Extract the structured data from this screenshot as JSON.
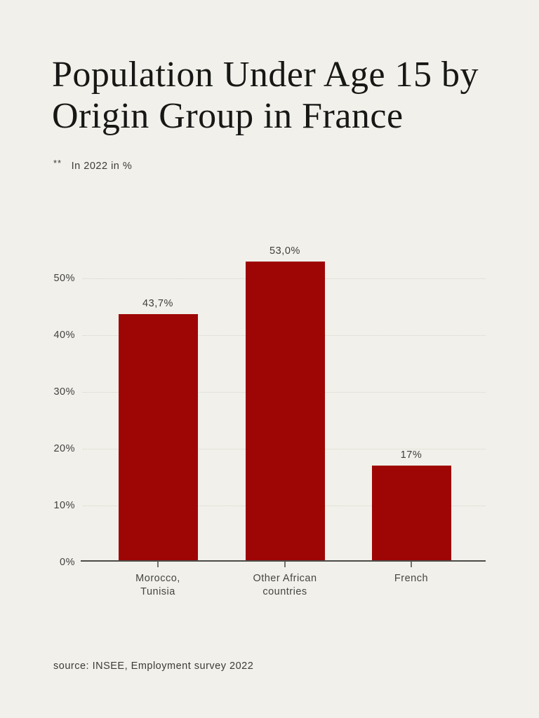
{
  "page": {
    "background_color": "#f1f0ea"
  },
  "header": {
    "title_line1": "Population Under Age 15 by",
    "title_line2": "Origin Group in France",
    "note_marker": "**",
    "note_text": "In 2022 in %"
  },
  "footer": {
    "source": "source: INSEE, Employment survey 2022"
  },
  "chart_data": {
    "type": "bar",
    "title": "Population Under Age 15 by Origin Group in France",
    "subtitle": "In 2022 in %",
    "categories": [
      "Morocco,\nTunisia",
      "Other African\ncountries",
      "French"
    ],
    "values": [
      43.7,
      53.0,
      17.0
    ],
    "value_labels": [
      "43,7%",
      "53,0%",
      "17%"
    ],
    "y_ticks": [
      0,
      10,
      20,
      30,
      40,
      50
    ],
    "y_tick_labels": [
      "0%",
      "10%",
      "20%",
      "30%",
      "40%",
      "50%"
    ],
    "ylim": [
      0,
      57
    ],
    "xlabel": "",
    "ylabel": "",
    "grid": "horizontal-dotted",
    "legend": "none",
    "bar_color": "#9e0606",
    "axis_color": "#4c4c48",
    "source": "source: INSEE, Employment survey 2022"
  }
}
